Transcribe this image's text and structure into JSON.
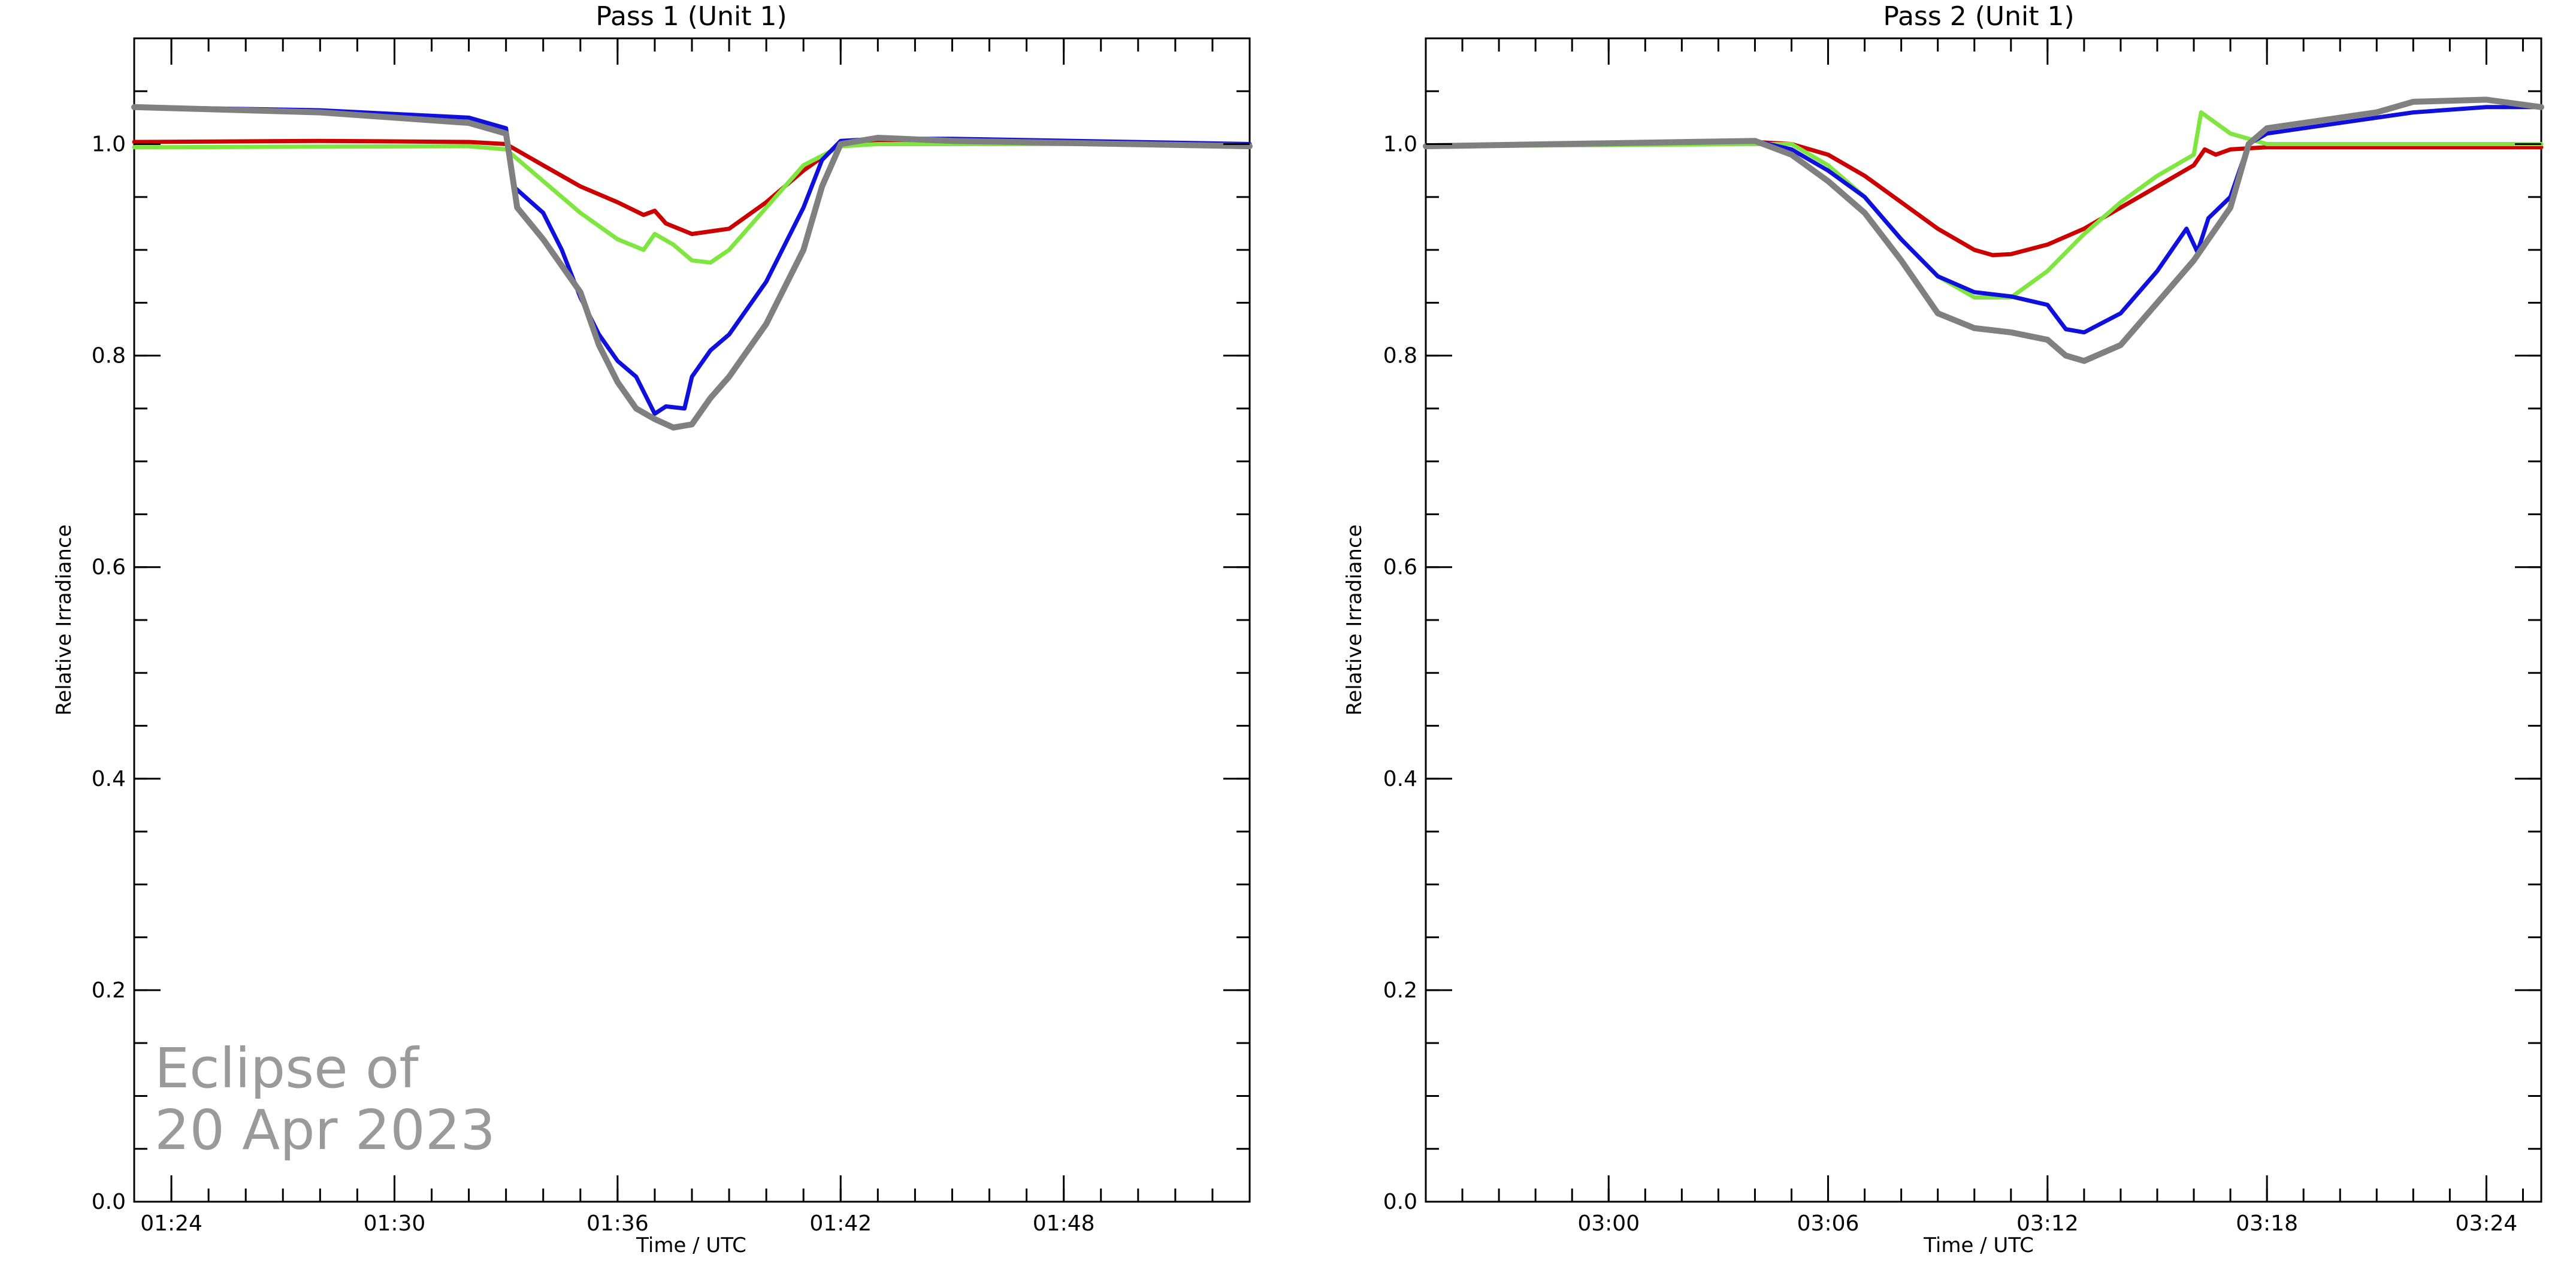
{
  "chart_data": [
    {
      "type": "line",
      "title": "Pass 1 (Unit 1)",
      "xlabel": "Time / UTC",
      "ylabel": "Relative Irradiance",
      "xlim": [
        "01:23",
        "01:53"
      ],
      "ylim": [
        0.0,
        1.1
      ],
      "x_ticks": [
        "01:24",
        "01:30",
        "01:36",
        "01:42",
        "01:48"
      ],
      "y_ticks": [
        "0.0",
        "0.2",
        "0.4",
        "0.6",
        "0.8",
        "1.0"
      ],
      "annotation": [
        "Eclipse of",
        "20 Apr 2023"
      ],
      "grid": false,
      "series": [
        {
          "color": "#cc0000",
          "points": [
            [
              "01:23",
              1.002
            ],
            [
              "01:28",
              1.003
            ],
            [
              "01:32",
              1.002
            ],
            [
              "01:33",
              1.0
            ],
            [
              "01:34",
              0.98
            ],
            [
              "01:35",
              0.96
            ],
            [
              "01:36",
              0.945
            ],
            [
              "01:36.7",
              0.933
            ],
            [
              "01:37",
              0.937
            ],
            [
              "01:37.3",
              0.925
            ],
            [
              "01:38",
              0.915
            ],
            [
              "01:39",
              0.92
            ],
            [
              "01:40",
              0.945
            ],
            [
              "01:41",
              0.975
            ],
            [
              "01:42",
              1.0
            ],
            [
              "01:43",
              1.003
            ],
            [
              "01:53",
              1.0
            ]
          ]
        },
        {
          "color": "#7fe640",
          "points": [
            [
              "01:23",
              0.997
            ],
            [
              "01:32",
              0.998
            ],
            [
              "01:33",
              0.995
            ],
            [
              "01:34",
              0.965
            ],
            [
              "01:35",
              0.935
            ],
            [
              "01:36",
              0.91
            ],
            [
              "01:36.7",
              0.9
            ],
            [
              "01:37",
              0.915
            ],
            [
              "01:37.5",
              0.905
            ],
            [
              "01:38",
              0.89
            ],
            [
              "01:38.5",
              0.888
            ],
            [
              "01:39",
              0.9
            ],
            [
              "01:40",
              0.94
            ],
            [
              "01:41",
              0.98
            ],
            [
              "01:42",
              0.998
            ],
            [
              "01:43",
              1.0
            ],
            [
              "01:53",
              1.0
            ]
          ]
        },
        {
          "color": "#1010dd",
          "points": [
            [
              "01:23",
              1.035
            ],
            [
              "01:28",
              1.032
            ],
            [
              "01:32",
              1.025
            ],
            [
              "01:33",
              1.015
            ],
            [
              "01:33.2",
              0.96
            ],
            [
              "01:34",
              0.935
            ],
            [
              "01:34.5",
              0.9
            ],
            [
              "01:35",
              0.855
            ],
            [
              "01:35.5",
              0.82
            ],
            [
              "01:36",
              0.795
            ],
            [
              "01:36.5",
              0.78
            ],
            [
              "01:37",
              0.745
            ],
            [
              "01:37.3",
              0.752
            ],
            [
              "01:37.8",
              0.75
            ],
            [
              "01:38",
              0.78
            ],
            [
              "01:38.5",
              0.805
            ],
            [
              "01:39",
              0.82
            ],
            [
              "01:40",
              0.87
            ],
            [
              "01:41",
              0.94
            ],
            [
              "01:41.5",
              0.985
            ],
            [
              "01:42",
              1.003
            ],
            [
              "01:43",
              1.005
            ],
            [
              "01:45",
              1.005
            ],
            [
              "01:53",
              1.0
            ]
          ]
        },
        {
          "color": "#808080",
          "points": [
            [
              "01:23",
              1.035
            ],
            [
              "01:28",
              1.03
            ],
            [
              "01:32",
              1.02
            ],
            [
              "01:33",
              1.01
            ],
            [
              "01:33.3",
              0.94
            ],
            [
              "01:34",
              0.91
            ],
            [
              "01:35",
              0.86
            ],
            [
              "01:35.5",
              0.81
            ],
            [
              "01:36",
              0.775
            ],
            [
              "01:36.5",
              0.75
            ],
            [
              "01:37",
              0.74
            ],
            [
              "01:37.5",
              0.732
            ],
            [
              "01:38",
              0.735
            ],
            [
              "01:38.5",
              0.76
            ],
            [
              "01:39",
              0.78
            ],
            [
              "01:40",
              0.83
            ],
            [
              "01:41",
              0.9
            ],
            [
              "01:41.5",
              0.96
            ],
            [
              "01:42",
              1.0
            ],
            [
              "01:43",
              1.006
            ],
            [
              "01:45",
              1.003
            ],
            [
              "01:53",
              0.998
            ]
          ]
        }
      ]
    },
    {
      "type": "line",
      "title": "Pass 2 (Unit 1)",
      "xlabel": "Time / UTC",
      "ylabel": "Relative Irradiance",
      "xlim": [
        "02:55",
        "03:25.5"
      ],
      "ylim": [
        0.0,
        1.1
      ],
      "x_ticks": [
        "03:00",
        "03:06",
        "03:12",
        "03:18",
        "03:24"
      ],
      "y_ticks": [
        "0.0",
        "0.2",
        "0.4",
        "0.6",
        "0.8",
        "1.0"
      ],
      "grid": false,
      "series": [
        {
          "color": "#cc0000",
          "points": [
            [
              "02:55",
              0.998
            ],
            [
              "03:04",
              1.002
            ],
            [
              "03:05",
              1.0
            ],
            [
              "03:06",
              0.99
            ],
            [
              "03:07",
              0.97
            ],
            [
              "03:08",
              0.945
            ],
            [
              "03:09",
              0.92
            ],
            [
              "03:10",
              0.9
            ],
            [
              "03:10.5",
              0.895
            ],
            [
              "03:11",
              0.896
            ],
            [
              "03:12",
              0.905
            ],
            [
              "03:13",
              0.92
            ],
            [
              "03:14",
              0.94
            ],
            [
              "03:15",
              0.96
            ],
            [
              "03:16",
              0.98
            ],
            [
              "03:16.3",
              0.995
            ],
            [
              "03:16.6",
              0.99
            ],
            [
              "03:17",
              0.995
            ],
            [
              "03:18",
              0.997
            ],
            [
              "03:25.5",
              0.997
            ]
          ]
        },
        {
          "color": "#7fe640",
          "points": [
            [
              "02:55",
              0.998
            ],
            [
              "03:04",
              1.0
            ],
            [
              "03:05",
              1.0
            ],
            [
              "03:06",
              0.98
            ],
            [
              "03:07",
              0.95
            ],
            [
              "03:08",
              0.91
            ],
            [
              "03:09",
              0.875
            ],
            [
              "03:10",
              0.855
            ],
            [
              "03:11",
              0.855
            ],
            [
              "03:12",
              0.88
            ],
            [
              "03:13",
              0.915
            ],
            [
              "03:14",
              0.945
            ],
            [
              "03:15",
              0.97
            ],
            [
              "03:16",
              0.99
            ],
            [
              "03:16.2",
              1.03
            ],
            [
              "03:17",
              1.01
            ],
            [
              "03:18",
              1.0
            ],
            [
              "03:25.5",
              1.0
            ]
          ]
        },
        {
          "color": "#1010dd",
          "points": [
            [
              "02:55",
              0.998
            ],
            [
              "03:04",
              1.003
            ],
            [
              "03:05",
              0.995
            ],
            [
              "03:06",
              0.975
            ],
            [
              "03:07",
              0.95
            ],
            [
              "03:08",
              0.91
            ],
            [
              "03:09",
              0.875
            ],
            [
              "03:10",
              0.86
            ],
            [
              "03:11",
              0.856
            ],
            [
              "03:12",
              0.848
            ],
            [
              "03:12.5",
              0.825
            ],
            [
              "03:13",
              0.822
            ],
            [
              "03:14",
              0.84
            ],
            [
              "03:15",
              0.88
            ],
            [
              "03:15.8",
              0.92
            ],
            [
              "03:16.1",
              0.898
            ],
            [
              "03:16.4",
              0.93
            ],
            [
              "03:17",
              0.95
            ],
            [
              "03:17.5",
              1.0
            ],
            [
              "03:18",
              1.01
            ],
            [
              "03:20",
              1.02
            ],
            [
              "03:21",
              1.025
            ],
            [
              "03:22",
              1.03
            ],
            [
              "03:24",
              1.035
            ],
            [
              "03:25.5",
              1.035
            ]
          ]
        },
        {
          "color": "#808080",
          "points": [
            [
              "02:55",
              0.998
            ],
            [
              "03:04",
              1.003
            ],
            [
              "03:05",
              0.99
            ],
            [
              "03:06",
              0.965
            ],
            [
              "03:07",
              0.935
            ],
            [
              "03:08",
              0.89
            ],
            [
              "03:09",
              0.84
            ],
            [
              "03:10",
              0.826
            ],
            [
              "03:11",
              0.822
            ],
            [
              "03:12",
              0.815
            ],
            [
              "03:12.5",
              0.8
            ],
            [
              "03:13",
              0.795
            ],
            [
              "03:14",
              0.81
            ],
            [
              "03:15",
              0.85
            ],
            [
              "03:16",
              0.89
            ],
            [
              "03:17",
              0.94
            ],
            [
              "03:17.5",
              1.0
            ],
            [
              "03:18",
              1.015
            ],
            [
              "03:20",
              1.025
            ],
            [
              "03:21",
              1.03
            ],
            [
              "03:22",
              1.04
            ],
            [
              "03:24",
              1.042
            ],
            [
              "03:25.5",
              1.035
            ]
          ]
        }
      ]
    }
  ]
}
